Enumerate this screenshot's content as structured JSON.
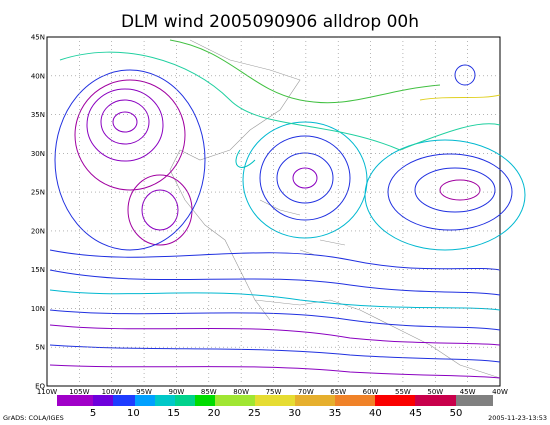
{
  "header": {
    "title": "DLM wind 2005090906 alldrop 00h"
  },
  "lat_ticks": [
    "EQ",
    "5N",
    "10N",
    "15N",
    "20N",
    "25N",
    "30N",
    "35N",
    "40N",
    "45N"
  ],
  "lon_ticks": [
    "110W",
    "105W",
    "100W",
    "95W",
    "90W",
    "85W",
    "80W",
    "75W",
    "70W",
    "65W",
    "60W",
    "55W",
    "50W",
    "45W",
    "40W"
  ],
  "colorbar_labels": [
    "5",
    "10",
    "15",
    "20",
    "25",
    "30",
    "35",
    "40",
    "45",
    "50"
  ],
  "footer": {
    "left": "GrADS: COLA/IGES",
    "right": "2005-11-23-13:53"
  }
}
